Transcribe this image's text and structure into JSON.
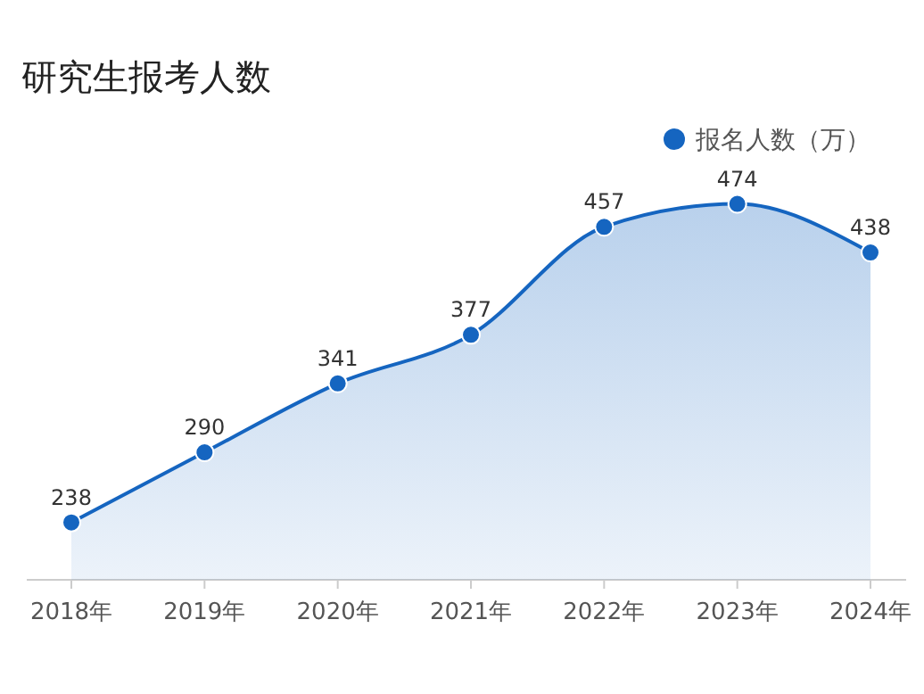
{
  "chart_data": {
    "type": "area",
    "title": "研究生报考人数",
    "categories": [
      "2018年",
      "2019年",
      "2020年",
      "2021年",
      "2022年",
      "2023年",
      "2024年"
    ],
    "series": [
      {
        "name": "报名人数（万）",
        "color": "#1565c0",
        "values": [
          238,
          290,
          341,
          377,
          457,
          474,
          438
        ]
      }
    ],
    "data_labels": true,
    "marker": "circle",
    "legend": "top right"
  }
}
